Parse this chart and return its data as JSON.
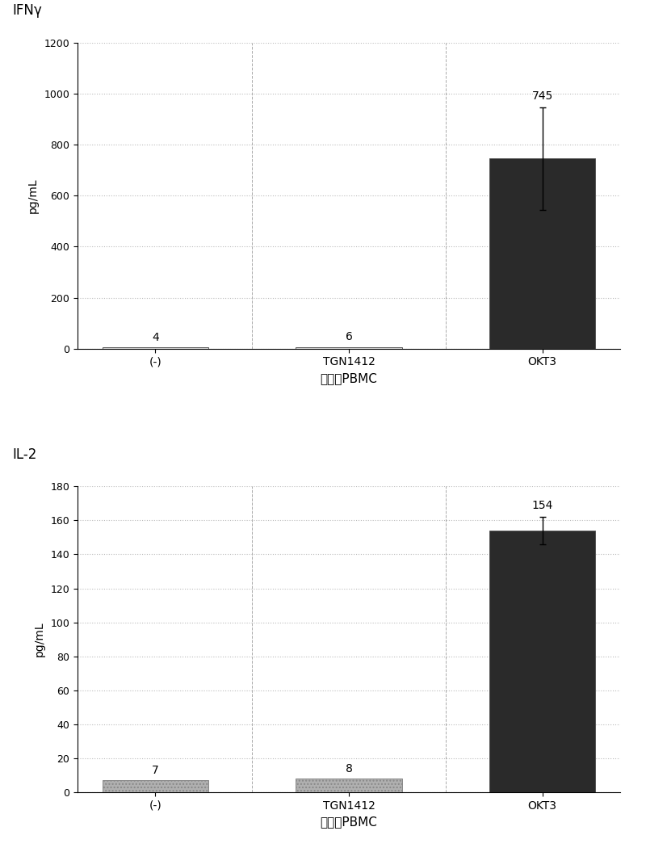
{
  "chart1": {
    "title": "IFNγ",
    "categories": [
      "(-)",
      "TGN1412",
      "OKT3"
    ],
    "values": [
      4,
      6,
      745
    ],
    "error_bar_okT3": 200,
    "ylabel": "pg/mL",
    "xlabel": "新鲜的PBMC",
    "ylim": [
      0,
      1200
    ],
    "yticks": [
      0,
      200,
      400,
      600,
      800,
      1000,
      1200
    ],
    "value_labels": [
      "4",
      "6",
      "745"
    ],
    "bar1_color": "#d0d0d0",
    "bar2_color": "#d0d0d0",
    "bar3_color": "#2a2a2a"
  },
  "chart2": {
    "title": "IL-2",
    "categories": [
      "(-)",
      "TGN1412",
      "OKT3"
    ],
    "values": [
      7,
      8,
      154
    ],
    "error_bar_okT3": 8,
    "ylabel": "pg/mL",
    "xlabel": "新鲜的PBMC",
    "ylim": [
      0,
      180
    ],
    "yticks": [
      0,
      20,
      40,
      60,
      80,
      100,
      120,
      140,
      160,
      180
    ],
    "value_labels": [
      "7",
      "8",
      "154"
    ],
    "bar1_color": "#b0b0b0",
    "bar2_color": "#b0b0b0",
    "bar3_color": "#2a2a2a"
  },
  "bg_color": "#ffffff",
  "fig_bg": "#ffffff",
  "grid_color": "#aaaaaa",
  "grid_style": "dotted"
}
